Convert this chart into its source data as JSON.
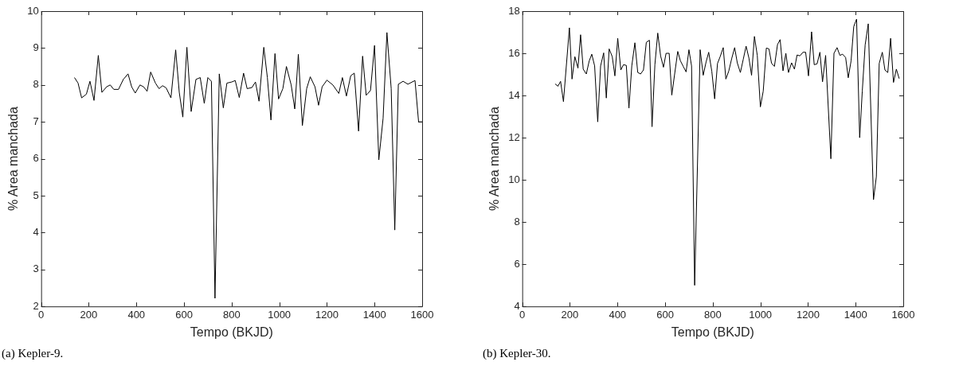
{
  "chart_data": [
    {
      "type": "line",
      "xlabel": "Tempo (BKJD)",
      "ylabel": "% Area manchada",
      "annotations": [
        "(a) Kepler-9."
      ],
      "xlim": [
        0,
        1600
      ],
      "xticks": [
        0,
        200,
        400,
        600,
        800,
        1000,
        1200,
        1400,
        1600
      ],
      "ylim": [
        2,
        10
      ],
      "yticks": [
        2,
        3,
        4,
        5,
        6,
        7,
        8,
        9,
        10
      ],
      "grid": false,
      "legend": false,
      "marker": "none",
      "line_style": "solid",
      "series": [
        {
          "color": "#000000",
          "x": [
            140,
            155,
            170,
            190,
            205,
            222,
            240,
            255,
            275,
            290,
            305,
            325,
            345,
            365,
            380,
            395,
            415,
            430,
            445,
            460,
            480,
            495,
            510,
            525,
            545,
            565,
            580,
            595,
            612,
            630,
            650,
            668,
            685,
            700,
            715,
            730,
            748,
            765,
            780,
            800,
            815,
            832,
            850,
            865,
            885,
            900,
            915,
            935,
            950,
            965,
            982,
            997,
            1015,
            1030,
            1050,
            1065,
            1080,
            1097,
            1115,
            1130,
            1150,
            1165,
            1180,
            1200,
            1225,
            1250,
            1265,
            1282,
            1300,
            1315,
            1333,
            1350,
            1365,
            1383,
            1400,
            1418,
            1436,
            1452,
            1470,
            1485,
            1500,
            1520,
            1540,
            1570,
            1585,
            1600
          ],
          "values": [
            8.2,
            8.05,
            7.65,
            7.75,
            8.1,
            7.58,
            8.8,
            7.8,
            7.95,
            8.0,
            7.88,
            7.88,
            8.15,
            8.3,
            7.95,
            7.78,
            8.0,
            7.95,
            7.83,
            8.35,
            8.05,
            7.9,
            7.98,
            7.92,
            7.65,
            8.95,
            7.8,
            7.13,
            9.02,
            7.28,
            8.15,
            8.2,
            7.5,
            8.2,
            8.1,
            2.22,
            8.3,
            7.38,
            8.05,
            8.08,
            8.12,
            7.66,
            8.32,
            7.9,
            7.93,
            8.08,
            7.56,
            9.02,
            8.2,
            7.05,
            8.85,
            7.62,
            7.9,
            8.5,
            8.0,
            7.35,
            8.83,
            6.9,
            7.9,
            8.22,
            7.95,
            7.45,
            7.95,
            8.13,
            8.0,
            7.77,
            8.2,
            7.7,
            8.25,
            8.32,
            6.75,
            8.78,
            7.72,
            7.85,
            9.07,
            5.97,
            7.1,
            9.42,
            7.9,
            4.07,
            8.02,
            8.1,
            8.02,
            8.12,
            7.0,
            7.0
          ]
        }
      ]
    },
    {
      "type": "line",
      "xlabel": "Tempo (BKJD)",
      "ylabel": "% Area manchada",
      "annotations": [
        "(b) Kepler-30."
      ],
      "xlim": [
        0,
        1600
      ],
      "xticks": [
        0,
        200,
        400,
        600,
        800,
        1000,
        1200,
        1400,
        1600
      ],
      "ylim": [
        4,
        18
      ],
      "yticks": [
        4,
        6,
        8,
        10,
        12,
        14,
        16,
        18
      ],
      "grid": false,
      "legend": false,
      "marker": "none",
      "line_style": "solid",
      "series": [
        {
          "color": "#000000",
          "x": [
            138,
            150,
            161,
            173,
            198,
            209,
            221,
            234,
            245,
            256,
            269,
            281,
            292,
            304,
            317,
            329,
            342,
            353,
            365,
            378,
            389,
            401,
            414,
            425,
            437,
            448,
            460,
            473,
            485,
            497,
            509,
            521,
            534,
            545,
            557,
            569,
            581,
            593,
            604,
            617,
            628,
            640,
            653,
            664,
            676,
            688,
            700,
            711,
            724,
            747,
            760,
            772,
            783,
            796,
            808,
            820,
            831,
            844,
            855,
            867,
            880,
            892,
            903,
            916,
            928,
            940,
            952,
            963,
            975,
            987,
            1000,
            1012,
            1025,
            1036,
            1047,
            1059,
            1072,
            1083,
            1095,
            1107,
            1118,
            1131,
            1143,
            1154,
            1166,
            1179,
            1190,
            1202,
            1215,
            1226,
            1238,
            1250,
            1261,
            1274,
            1296,
            1309,
            1322,
            1334,
            1345,
            1358,
            1369,
            1381,
            1392,
            1404,
            1417,
            1428,
            1440,
            1453,
            1475,
            1487,
            1499,
            1512,
            1523,
            1535,
            1547,
            1559,
            1571,
            1583
          ],
          "values": [
            14.55,
            14.44,
            14.67,
            13.71,
            17.21,
            14.78,
            15.84,
            15.3,
            16.88,
            15.25,
            15.02,
            15.63,
            15.96,
            15.4,
            12.75,
            15.4,
            16.02,
            13.88,
            16.21,
            15.84,
            14.93,
            16.71,
            15.21,
            15.46,
            15.43,
            13.4,
            15.4,
            16.5,
            15.09,
            15.02,
            15.21,
            16.52,
            16.62,
            12.52,
            15.46,
            16.96,
            15.88,
            15.34,
            16.0,
            16.0,
            14.02,
            15.02,
            16.09,
            15.65,
            15.38,
            15.12,
            16.17,
            15.4,
            5.0,
            16.17,
            14.96,
            15.59,
            16.05,
            15.15,
            13.84,
            15.52,
            15.84,
            16.27,
            14.78,
            15.15,
            15.77,
            16.27,
            15.55,
            15.09,
            15.71,
            16.34,
            15.77,
            14.96,
            16.8,
            15.9,
            13.46,
            14.21,
            16.25,
            16.21,
            15.52,
            15.38,
            16.42,
            16.65,
            15.17,
            16.0,
            15.09,
            15.55,
            15.25,
            15.92,
            15.88,
            16.05,
            16.05,
            14.93,
            17.02,
            15.46,
            15.5,
            16.05,
            14.65,
            15.9,
            11.0,
            16.0,
            16.27,
            15.9,
            15.96,
            15.8,
            14.84,
            15.65,
            17.27,
            17.62,
            12.0,
            14.21,
            16.4,
            17.4,
            9.06,
            10.15,
            15.52,
            16.05,
            15.21,
            15.09,
            16.71,
            14.62,
            15.25,
            14.8
          ]
        }
      ]
    }
  ]
}
